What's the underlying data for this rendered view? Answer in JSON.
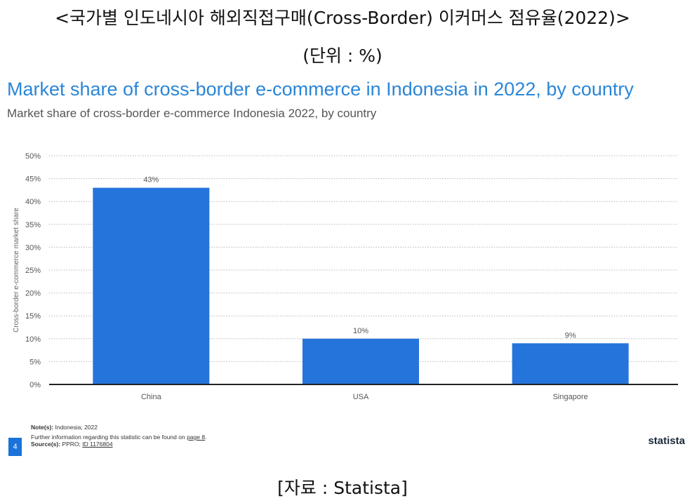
{
  "header": {
    "kr_title": "<국가별 인도네시아 해외직접구매(Cross-Border) 이커머스 점유율(2022)>",
    "kr_unit": "(단위 : %)"
  },
  "chart_data": {
    "type": "bar",
    "title": "Market share of cross-border e-commerce in Indonesia in 2022, by country",
    "subtitle": "Market share of cross-border e-commerce Indonesia 2022, by country",
    "categories": [
      "China",
      "USA",
      "Singapore"
    ],
    "values": [
      43,
      10,
      9
    ],
    "data_labels": [
      "43%",
      "10%",
      "9%"
    ],
    "ylabel": "Cross-border e-commerce market share",
    "xlabel": "",
    "ylim": [
      0,
      50
    ],
    "yticks": [
      0,
      5,
      10,
      15,
      20,
      25,
      30,
      35,
      40,
      45,
      50
    ],
    "ytick_labels": [
      "0%",
      "5%",
      "10%",
      "15%",
      "20%",
      "25%",
      "30%",
      "35%",
      "40%",
      "45%",
      "50%"
    ],
    "grid": true,
    "bar_color": "#2574db",
    "title_color": "#2a86d8"
  },
  "footer": {
    "page_number": "4",
    "note_label": "Note(s):",
    "note_text": "Indonesia; 2022",
    "further_info": "Further information regarding this statistic can be found on",
    "further_info_link": "page 8",
    "source_label": "Source(s):",
    "source_text": "PPRO;",
    "source_id": "ID 1176804",
    "brand": "statista"
  },
  "source_caption": "[자료 : Statista]"
}
